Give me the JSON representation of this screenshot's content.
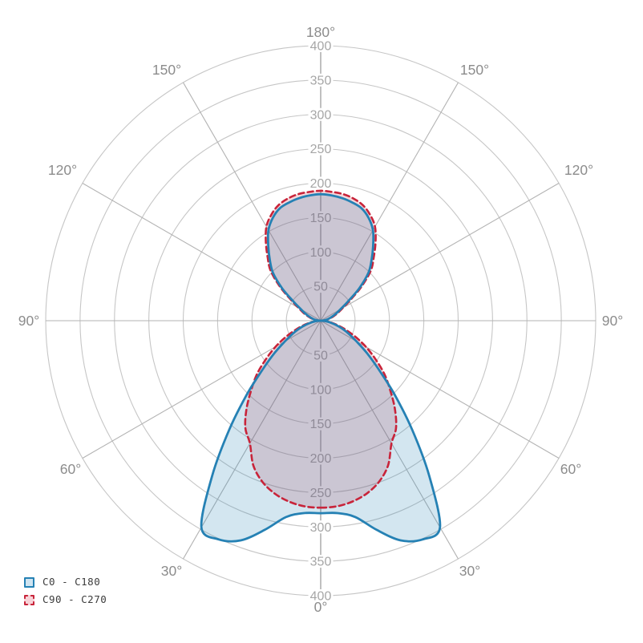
{
  "chart_data": {
    "type": "line",
    "polar": true,
    "title": "",
    "orientation": "0 deg at bottom (nadir), 180 deg at top, symmetric left/right",
    "angle_unit": "degrees",
    "radial_max": 400,
    "radial_ticks": [
      50,
      100,
      150,
      200,
      250,
      300,
      350,
      400
    ],
    "angle_labels": [
      "0°",
      "30°",
      "60°",
      "90°",
      "120°",
      "150°",
      "180°"
    ],
    "grid": true,
    "legend_position": "bottom-left",
    "angles_deg": [
      0,
      5,
      10,
      15,
      20,
      25,
      30,
      35,
      40,
      45,
      50,
      55,
      60,
      65,
      70,
      75,
      80,
      85,
      90,
      95,
      100,
      105,
      110,
      115,
      120,
      125,
      130,
      135,
      140,
      145,
      150,
      155,
      160,
      165,
      170,
      175,
      180
    ],
    "series": [
      {
        "name": "C0 - C180",
        "style": "solid",
        "color": "#2581b4",
        "fill": "rgba(37,129,180,0.20)",
        "values": [
          280,
          281,
          290,
          315,
          340,
          351,
          347,
          275,
          207,
          152,
          110,
          82,
          60,
          45,
          33,
          22,
          13,
          6,
          0,
          4,
          9,
          13,
          18,
          25,
          33,
          48,
          73,
          98,
          115,
          133,
          152,
          165,
          174,
          178,
          181,
          183,
          184
        ]
      },
      {
        "name": "C90 - C270",
        "style": "dashed",
        "color": "#c8243a",
        "fill": "rgba(200,36,58,0.18)",
        "values": [
          272,
          271,
          267,
          260,
          249,
          232,
          206,
          191,
          168,
          143,
          121,
          97,
          76,
          56,
          39,
          26,
          15,
          7,
          0,
          5,
          10,
          15,
          21,
          28,
          37,
          53,
          78,
          103,
          120,
          139,
          158,
          170,
          179,
          184,
          187,
          188,
          189
        ]
      }
    ],
    "colors": {
      "ring_grid": "#c6c6c6",
      "spoke_grid": "#b3b3b3",
      "vertical_axis": "#9e9e9e",
      "ring_label_text": "#a6a6a6",
      "angle_label_text": "#8c8c8c",
      "background": "#ffffff"
    }
  },
  "legend": {
    "items": [
      {
        "label": "C0 - C180"
      },
      {
        "label": "C90 - C270"
      }
    ]
  }
}
